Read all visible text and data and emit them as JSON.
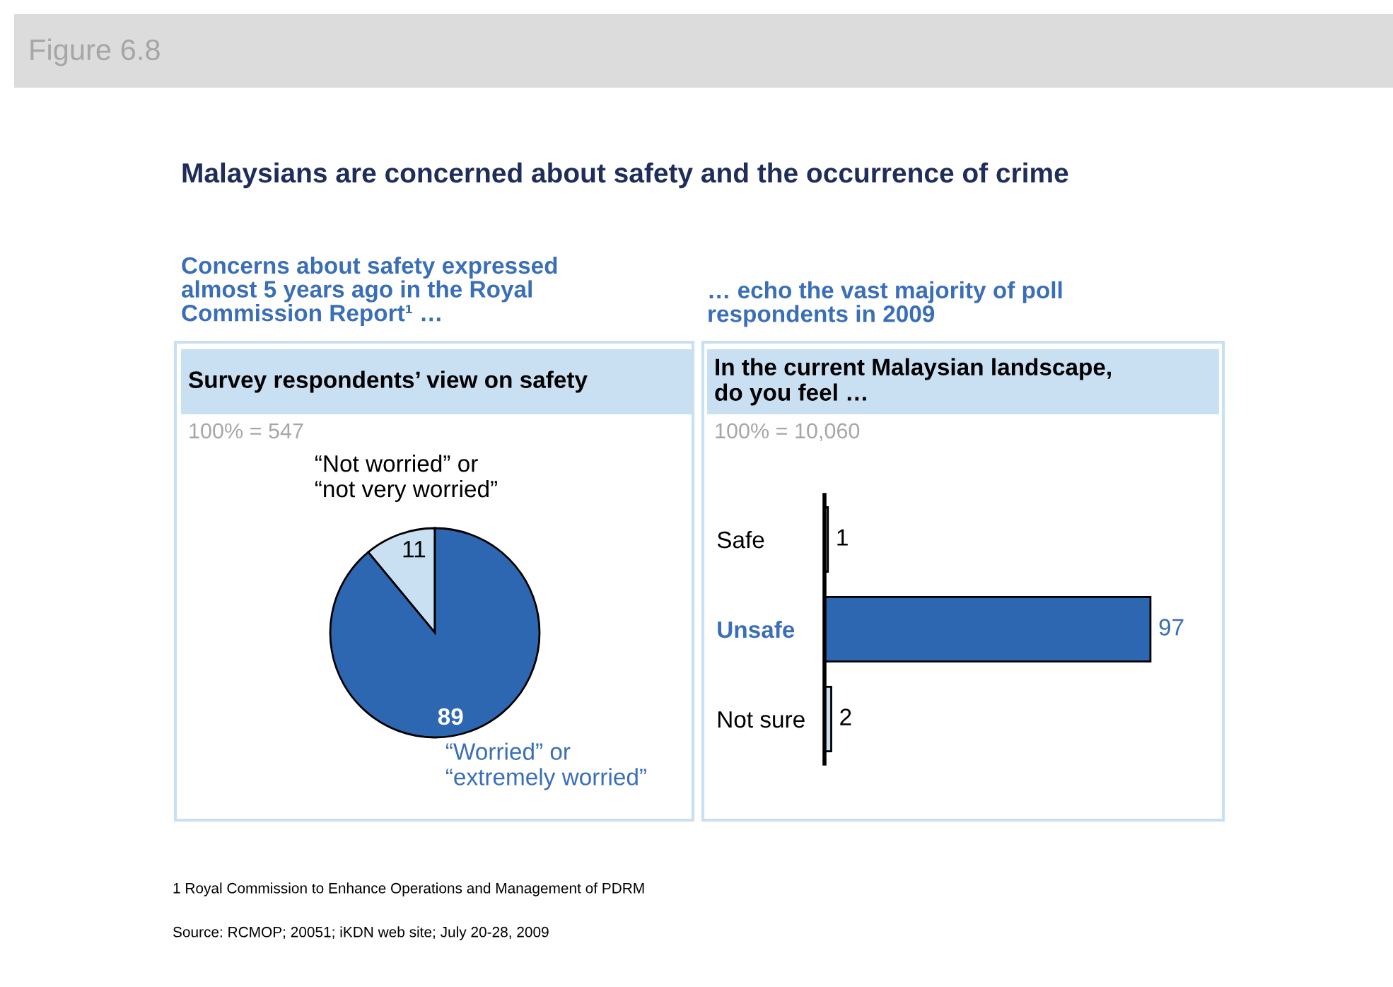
{
  "chart_data": [
    {
      "type": "pie",
      "title": "Survey respondents’ view on safety",
      "subtitle": "100% = 547",
      "categories": [
        "“Not worried” or\n“not very worried”",
        "“Worried” or\n“extremely worried”"
      ],
      "values": [
        11,
        89
      ],
      "colors": [
        "#c9dff2",
        "#2e67b1"
      ],
      "data_labels": true,
      "annotations": [
        "Figure 6.8",
        "Malaysians are concerned about safety and the occurrence of crime",
        "Concerns about safety expressed\nalmost 5 years ago in the Royal\nCommission Report¹ …",
        "1 Royal Commission to Enhance Operations and Management of PDRM",
        "Source: RCMOP; 20051; iKDN web site; July 20-28, 2009"
      ]
    },
    {
      "type": "bar",
      "orientation": "horizontal",
      "title": "In the current Malaysian landscape,\ndo you feel …",
      "subtitle": "100% = 10,060",
      "categories": [
        "Safe",
        "Unsafe",
        "Not sure"
      ],
      "values": [
        1,
        97,
        2
      ],
      "colors": [
        "#c9dff2",
        "#2e67b1",
        "#c9dff2"
      ],
      "data_labels": true,
      "tick_labels": "y",
      "annotations": [
        "… echo the vast majority of poll\nrespondents in 2009"
      ]
    }
  ]
}
